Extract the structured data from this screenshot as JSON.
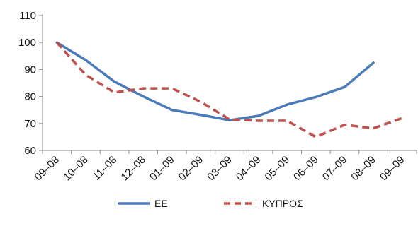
{
  "chart_data": {
    "type": "line",
    "categories": [
      "09–08",
      "10–08",
      "11–08",
      "12–08",
      "01–09",
      "02–09",
      "03–09",
      "04–09",
      "05–09",
      "06–09",
      "07–09",
      "08–09",
      "09–09"
    ],
    "series": [
      {
        "name": "ΕΕ",
        "color": "#4a7ab8",
        "dash": "solid",
        "values": [
          100,
          93.5,
          85.5,
          80,
          75,
          73.2,
          71.2,
          72.8,
          77,
          79.8,
          83.5,
          92.5,
          null
        ]
      },
      {
        "name": "ΚΥΠΡΟΣ",
        "color": "#c0504d",
        "dash": "dashed",
        "values": [
          100,
          88,
          81.5,
          83,
          83,
          78,
          71.5,
          71,
          71,
          65,
          69.5,
          68.2,
          72
        ]
      }
    ],
    "ylim": [
      60,
      110
    ],
    "yticks": [
      60,
      70,
      80,
      90,
      100,
      110
    ],
    "legend_position": "bottom",
    "grid": false
  }
}
